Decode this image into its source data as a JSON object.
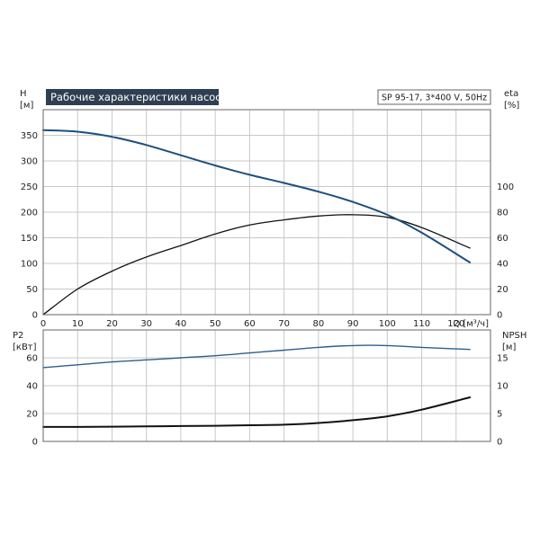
{
  "title": "Рабочие характеристики насоса",
  "pump_label": "SP 95-17, 3*400 V, 50Hz",
  "colors": {
    "title_bg": "#2f3f52",
    "head_curve": "#1d4f80",
    "eff_curve": "#111111",
    "p2_curve": "#2d5f8c",
    "npsh_curve": "#111111",
    "grid": "#c8c8c8",
    "frame": "#666666"
  },
  "chart_data": [
    {
      "type": "line",
      "panel": "top",
      "title": "Рабочие характеристики насоса",
      "xlabel": "Q [м³/ч]",
      "ylabel_left": "H [м]",
      "ylabel_right": "eta [%]",
      "xlim": [
        0,
        130
      ],
      "ylim_left": [
        0,
        400
      ],
      "ylim_right": [
        0,
        160
      ],
      "x_ticks": [
        0,
        10,
        20,
        30,
        40,
        50,
        60,
        70,
        80,
        90,
        100,
        110,
        120
      ],
      "y_left_ticks": [
        0,
        50,
        100,
        150,
        200,
        250,
        300,
        350
      ],
      "y_right_ticks": [
        0,
        20,
        40,
        60,
        80,
        100
      ],
      "grid": true,
      "series": [
        {
          "axis": "left",
          "x": [
            0,
            10,
            20,
            30,
            40,
            50,
            60,
            70,
            80,
            90,
            100,
            110,
            124
          ],
          "y": [
            360,
            357,
            347,
            331,
            311,
            291,
            273,
            257,
            240,
            220,
            195,
            160,
            102
          ]
        },
        {
          "axis": "right",
          "x": [
            0,
            10,
            20,
            30,
            40,
            50,
            60,
            70,
            80,
            90,
            100,
            110,
            124
          ],
          "y": [
            0,
            20,
            34,
            45,
            54,
            63,
            70,
            74,
            77,
            78,
            76,
            68,
            52
          ]
        }
      ]
    },
    {
      "type": "line",
      "panel": "bottom",
      "ylabel_left": "P2 [кВт]",
      "ylabel_right": "NPSH [м]",
      "xlim": [
        0,
        130
      ],
      "ylim_left": [
        0,
        80
      ],
      "ylim_right": [
        0,
        20
      ],
      "y_left_ticks": [
        0,
        20,
        40,
        60
      ],
      "y_right_ticks": [
        0,
        5,
        10,
        15
      ],
      "grid": true,
      "series": [
        {
          "axis": "left",
          "x": [
            0,
            10,
            20,
            30,
            40,
            50,
            60,
            70,
            80,
            90,
            100,
            110,
            124
          ],
          "y": [
            53,
            55,
            57,
            58.5,
            60,
            61.5,
            63.5,
            65.5,
            67.5,
            68.8,
            68.8,
            67.5,
            66
          ]
        },
        {
          "axis": "right",
          "x": [
            0,
            10,
            20,
            30,
            40,
            50,
            60,
            70,
            80,
            90,
            100,
            110,
            124
          ],
          "y": [
            2.6,
            2.6,
            2.65,
            2.7,
            2.75,
            2.8,
            2.9,
            3.0,
            3.3,
            3.8,
            4.5,
            5.7,
            7.9
          ]
        }
      ]
    }
  ]
}
